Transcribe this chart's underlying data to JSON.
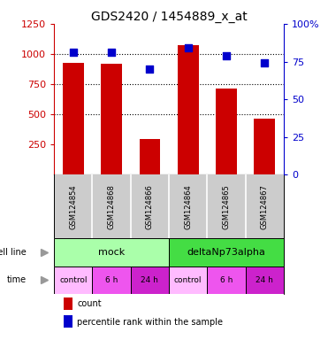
{
  "title": "GDS2420 / 1454889_x_at",
  "samples": [
    "GSM124854",
    "GSM124868",
    "GSM124866",
    "GSM124864",
    "GSM124865",
    "GSM124867"
  ],
  "counts": [
    930,
    920,
    295,
    1075,
    715,
    465
  ],
  "percentiles": [
    81,
    81,
    70,
    84,
    79,
    74
  ],
  "bar_color": "#cc0000",
  "dot_color": "#0000cc",
  "ylim_left": [
    0,
    1250
  ],
  "ylim_right": [
    0,
    100
  ],
  "yticks_left": [
    250,
    500,
    750,
    1000,
    1250
  ],
  "yticks_right": [
    0,
    25,
    50,
    75,
    100
  ],
  "ytick_labels_right": [
    "0",
    "25",
    "50",
    "75",
    "100%"
  ],
  "grid_values": [
    500,
    750,
    1000
  ],
  "cell_line_labels": [
    "mock",
    "deltaNp73alpha"
  ],
  "cell_line_spans": [
    [
      0,
      3
    ],
    [
      3,
      6
    ]
  ],
  "cell_line_colors": [
    "#aaffaa",
    "#44dd44"
  ],
  "time_labels": [
    "control",
    "6 h",
    "24 h",
    "control",
    "6 h",
    "24 h"
  ],
  "time_colors": [
    "#ffbbff",
    "#ee55ee",
    "#cc22cc",
    "#ffbbff",
    "#ee55ee",
    "#cc22cc"
  ],
  "left_axis_color": "#cc0000",
  "right_axis_color": "#0000cc",
  "sample_bg_color": "#cccccc",
  "background_color": "#ffffff",
  "bar_width": 0.55
}
